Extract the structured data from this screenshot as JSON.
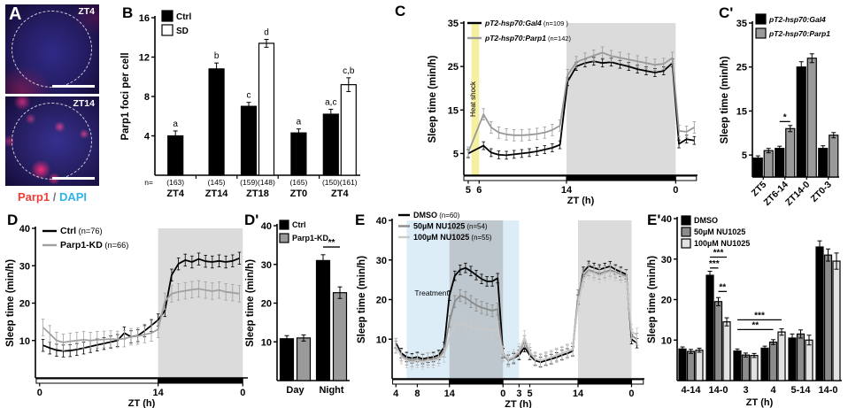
{
  "panels": {
    "A": {
      "label": "A"
    },
    "B": {
      "label": "B"
    },
    "C": {
      "label": "C"
    },
    "Cp": {
      "label": "C'"
    },
    "D": {
      "label": "D"
    },
    "Dp": {
      "label": "D'"
    },
    "E": {
      "label": "E"
    },
    "Ep": {
      "label": "E'"
    }
  },
  "panel_a": {
    "images": [
      {
        "tag": "ZT4"
      },
      {
        "tag": "ZT14"
      }
    ],
    "caption": [
      {
        "text": "Parp1",
        "color": "#ef3e36"
      },
      {
        "text": " / ",
        "color": "#777777"
      },
      {
        "text": "DAPI",
        "color": "#2fb4e9"
      }
    ]
  },
  "chart_data": [
    {
      "id": "B",
      "type": "bar",
      "ylabel": "Parp1 foci per cell",
      "ylim": [
        0,
        16
      ],
      "yticks": [
        4,
        8,
        12,
        16
      ],
      "categories": [
        "ZT4",
        "ZT14",
        "ZT18",
        "ZT0",
        "ZT4"
      ],
      "n_prefix": "n=",
      "n_labels": [
        "(163)",
        "(145)",
        "(159)(148)",
        "(165)",
        "(150)(161)"
      ],
      "series": [
        {
          "name": "Ctrl",
          "fill": "#000000",
          "values": [
            4.0,
            10.8,
            7.0,
            4.3,
            6.2
          ],
          "errors": [
            0.5,
            0.6,
            0.4,
            0.4,
            0.5
          ]
        },
        {
          "name": "SD",
          "fill": "#ffffff",
          "values": [
            null,
            null,
            13.4,
            null,
            9.2
          ],
          "errors": [
            null,
            null,
            0.4,
            null,
            0.7
          ]
        }
      ],
      "letters": [
        [
          "a",
          "b",
          "c",
          "a",
          "a,c"
        ],
        [
          null,
          null,
          "d",
          null,
          "c,b"
        ]
      ]
    },
    {
      "id": "C",
      "type": "line",
      "ylabel": "Sleep time (min/h)",
      "xlabel": "ZT (h)",
      "ylim": [
        0,
        35
      ],
      "yticks": [
        5,
        15,
        25,
        35
      ],
      "xlim": [
        4.6,
        26
      ],
      "xticks": [
        {
          "v": 5,
          "t": "5"
        },
        {
          "v": 6,
          "t": "6"
        },
        {
          "v": 14,
          "t": "14"
        },
        {
          "v": 24,
          "t": "0"
        }
      ],
      "bands": [
        {
          "x0": 5.3,
          "x1": 6.0,
          "color": "#f5efa0",
          "label": "Heat shock",
          "label_color": "#b3a653",
          "vertical": true
        },
        {
          "x0": 14,
          "x1": 24,
          "color": "#dbdbdb"
        }
      ],
      "daynight": [
        {
          "x0": 4.6,
          "x1": 14,
          "fill": "#ffffff"
        },
        {
          "x0": 14,
          "x1": 24,
          "fill": "#000000"
        },
        {
          "x0": 24,
          "x1": 25.9,
          "fill": "#ffffff"
        }
      ],
      "legend_italic": true,
      "series": [
        {
          "name": "pT2-hsp70:Gal4",
          "n": "(n=109 )",
          "color": "#000000",
          "err": 0.9,
          "x": [
            5,
            6.4,
            7.1,
            7.8,
            8.5,
            9.2,
            9.9,
            10.6,
            11.3,
            12,
            12.7,
            13.4,
            14.1,
            14.9,
            15.7,
            16.5,
            17.3,
            18.1,
            18.9,
            19.7,
            20.5,
            21.3,
            22.1,
            22.9,
            23.7,
            24.3,
            25,
            25.7
          ],
          "y": [
            5,
            6.8,
            5.2,
            4.7,
            4.6,
            4.8,
            5,
            5.2,
            5.5,
            5.9,
            6.3,
            7,
            21.5,
            25,
            25.8,
            26.2,
            25.8,
            26,
            25.5,
            25,
            24.4,
            24,
            23.6,
            24,
            25.8,
            7.2,
            8.3,
            8
          ]
        },
        {
          "name": "pT2-hsp70:Parp1",
          "n": "(n=142)",
          "color": "#999999",
          "err": 1.3,
          "x": [
            5,
            6.4,
            7.1,
            7.8,
            8.5,
            9.2,
            9.9,
            10.6,
            11.3,
            12,
            12.7,
            13.4,
            14.1,
            14.9,
            15.7,
            16.5,
            17.3,
            18.1,
            18.9,
            19.7,
            20.5,
            21.3,
            22.1,
            22.9,
            23.7,
            24.3,
            25,
            25.7
          ],
          "y": [
            5.2,
            14,
            11,
            9.8,
            9.4,
            9.2,
            9.2,
            9.3,
            9.5,
            9.8,
            10.4,
            11.4,
            23,
            26,
            26.8,
            27.5,
            28.2,
            27.4,
            27,
            26.6,
            26.2,
            25.8,
            25.4,
            25.6,
            27,
            10.2,
            10,
            11
          ]
        }
      ]
    },
    {
      "id": "Cp",
      "type": "bar",
      "ylabel": "Sleep time (min/h)",
      "ylim": [
        0,
        35
      ],
      "yticks": [
        5,
        15,
        25,
        35
      ],
      "categories": [
        "ZT5",
        "ZT6-14",
        "ZT14-0",
        "ZT0-3"
      ],
      "legend_italic": true,
      "series": [
        {
          "name": "pT2-hsp70:Gal4",
          "fill": "#000000",
          "values": [
            4.3,
            6.5,
            25,
            6.5
          ],
          "errors": [
            0.5,
            0.5,
            1.2,
            0.6
          ]
        },
        {
          "name": "pT2-hsp70:Parp1",
          "fill": "#9a9a9a",
          "values": [
            6,
            11,
            27,
            9.5
          ],
          "errors": [
            0.5,
            0.7,
            1,
            0.6
          ]
        }
      ],
      "sig": [
        {
          "text": "*",
          "g0": 1,
          "s0": 0,
          "g1": 1,
          "s1": 1,
          "y": 12.6
        }
      ]
    },
    {
      "id": "D",
      "type": "line",
      "ylabel": "Sleep time (min/h)",
      "xlabel": "ZT (h)",
      "ylim": [
        0,
        40
      ],
      "yticks": [
        10,
        20,
        30,
        40
      ],
      "xlim": [
        -0.5,
        24.6
      ],
      "xticks": [
        {
          "v": 0,
          "t": "0"
        },
        {
          "v": 14,
          "t": "14"
        },
        {
          "v": 24,
          "t": "0"
        }
      ],
      "bands": [
        {
          "x0": 14,
          "x1": 24,
          "color": "#dbdbdb"
        }
      ],
      "daynight": [
        {
          "x0": -0.4,
          "x1": 14,
          "fill": "#ffffff"
        },
        {
          "x0": 14,
          "x1": 24,
          "fill": "#000000"
        }
      ],
      "series": [
        {
          "name": "Ctrl",
          "n": "(n=76)",
          "color": "#000000",
          "err": 1.6,
          "x": [
            0.4,
            1.2,
            2,
            2.8,
            3.6,
            4.4,
            5.2,
            6,
            6.8,
            7.6,
            8.4,
            9.2,
            10,
            10.8,
            11.6,
            12.4,
            13.2,
            14,
            14.8,
            15.6,
            16.4,
            17.2,
            18,
            18.8,
            19.6,
            20.4,
            21.2,
            22,
            22.8,
            23.6
          ],
          "y": [
            8.7,
            8,
            7.4,
            7.2,
            7.3,
            7.6,
            8,
            8.4,
            8.8,
            9.2,
            9.6,
            10,
            12,
            11,
            11.3,
            12.6,
            14,
            15.5,
            18,
            27.5,
            30.5,
            31.5,
            31,
            31.8,
            31.2,
            31,
            31.3,
            31,
            31.3,
            32
          ]
        },
        {
          "name": "Parp1-KD",
          "n": "(n=66)",
          "color": "#a0a0a0",
          "err": 2.2,
          "x": [
            0.4,
            1.2,
            2,
            2.8,
            3.6,
            4.4,
            5.2,
            6,
            6.8,
            7.6,
            8.4,
            9.2,
            10,
            10.8,
            11.6,
            12.4,
            13.2,
            14,
            14.8,
            15.6,
            16.4,
            17.2,
            18,
            18.8,
            19.6,
            20.4,
            21.2,
            22,
            22.8,
            23.6
          ],
          "y": [
            13.5,
            11.8,
            10,
            9.5,
            9.8,
            10,
            10.2,
            10,
            10.2,
            10.3,
            10.4,
            10.3,
            10.5,
            11,
            11.2,
            11.6,
            12,
            13,
            20.5,
            22.5,
            23,
            23.3,
            23.6,
            23.8,
            23.5,
            23.2,
            23.5,
            23,
            22.8,
            22.5
          ]
        }
      ]
    },
    {
      "id": "Dp",
      "type": "bar",
      "ylabel": "Sleep time (min/h)",
      "ylim": [
        0,
        40
      ],
      "yticks": [
        10,
        20,
        30,
        40
      ],
      "categories": [
        "Day",
        "Night"
      ],
      "series": [
        {
          "name": "Ctrl",
          "fill": "#000000",
          "values": [
            10.8,
            31
          ],
          "errors": [
            0.8,
            1.5
          ]
        },
        {
          "name": "Parp1-KD",
          "fill": "#9a9a9a",
          "values": [
            11,
            22.7
          ],
          "errors": [
            0.8,
            1.5
          ]
        }
      ],
      "sig": [
        {
          "text": "**",
          "g0": 1,
          "s0": 0,
          "g1": 1,
          "s1": 1,
          "y": 34.5
        }
      ]
    },
    {
      "id": "E",
      "type": "line",
      "ylabel": "Sleep time (min/h)",
      "xlabel": "ZT (h)",
      "ylim": [
        0,
        40
      ],
      "yticks": [
        10,
        20,
        30,
        40
      ],
      "xlim": [
        3.3,
        50.4
      ],
      "xticks": [
        {
          "v": 4,
          "t": "4"
        },
        {
          "v": 8,
          "t": "8"
        },
        {
          "v": 14,
          "t": "14"
        },
        {
          "v": 24,
          "t": "0"
        },
        {
          "v": 27,
          "t": "3"
        },
        {
          "v": 29,
          "t": "5"
        },
        {
          "v": 38,
          "t": "14"
        },
        {
          "v": 48,
          "t": "0"
        }
      ],
      "bands": [
        {
          "x0": 6,
          "x1": 27,
          "color": "#dcedf8",
          "label": "Treatment",
          "label_color": "#90a9bd",
          "lx": 7.5,
          "ly": 21
        },
        {
          "x0": 14,
          "x1": 24,
          "color": "#9a9a9a",
          "opacity": 0.45
        },
        {
          "x0": 38,
          "x1": 48,
          "color": "#dbdbdb"
        }
      ],
      "daynight": [
        {
          "x0": 3.4,
          "x1": 14,
          "fill": "#ffffff"
        },
        {
          "x0": 14,
          "x1": 24,
          "fill": "#000000"
        },
        {
          "x0": 24,
          "x1": 38,
          "fill": "#ffffff"
        },
        {
          "x0": 38,
          "x1": 48,
          "fill": "#000000"
        },
        {
          "x0": 48,
          "x1": 50.2,
          "fill": "#ffffff"
        }
      ],
      "series": [
        {
          "name": "DMSO",
          "n": "(n=60)",
          "color": "#000000",
          "err": 1.2,
          "x": [
            4,
            5,
            6,
            7,
            8,
            9,
            10,
            11,
            12,
            13,
            14,
            15,
            16,
            17,
            18,
            19,
            20,
            21,
            22,
            23,
            24,
            25,
            26,
            27,
            28,
            29,
            30,
            31,
            32,
            33,
            34,
            35,
            36,
            37,
            38,
            39,
            40,
            41,
            42,
            43,
            44,
            45,
            46,
            47,
            48,
            49
          ],
          "y": [
            9,
            6.5,
            5.5,
            5.2,
            5.5,
            5,
            5.3,
            5.5,
            6,
            8,
            21,
            26,
            27.5,
            28,
            27.2,
            26.2,
            25.2,
            24.6,
            24.6,
            25.4,
            6.5,
            4.8,
            5.2,
            6,
            8,
            6,
            4.6,
            4.2,
            4.6,
            5,
            5.4,
            6,
            6.4,
            7,
            20,
            27,
            28.5,
            28,
            27.6,
            28,
            28.4,
            27.6,
            27,
            26.4,
            10,
            9
          ]
        },
        {
          "name": "50µM NU1025",
          "n": "(n=54)",
          "color": "#8a8a8a",
          "err": 1.5,
          "x": [
            4,
            5,
            6,
            7,
            8,
            9,
            10,
            11,
            12,
            13,
            14,
            15,
            16,
            17,
            18,
            19,
            20,
            21,
            22,
            23,
            24,
            25,
            26,
            27,
            28,
            29,
            30,
            31,
            32,
            33,
            34,
            35,
            36,
            37,
            38,
            39,
            40,
            41,
            42,
            43,
            44,
            45,
            46,
            47,
            48,
            49
          ],
          "y": [
            8,
            6,
            5,
            4.6,
            5,
            4.6,
            5,
            5,
            5.4,
            7,
            14.5,
            19.5,
            21,
            20.5,
            19.5,
            18.6,
            18,
            17.6,
            17.2,
            17.6,
            6,
            4.6,
            5.2,
            6.6,
            9.4,
            6.4,
            5,
            4.6,
            5,
            5.4,
            6,
            6.4,
            7,
            7.4,
            21,
            26,
            27.5,
            27,
            26.6,
            27,
            27.4,
            27,
            26.4,
            26,
            11,
            10
          ]
        },
        {
          "name": "100µM NU1025",
          "n": "(n=55)",
          "color": "#c9c9c9",
          "err": 1.8,
          "x": [
            4,
            5,
            6,
            7,
            8,
            9,
            10,
            11,
            12,
            13,
            14,
            15,
            16,
            17,
            18,
            19,
            20,
            21,
            22,
            23,
            24,
            25,
            26,
            27,
            28,
            29,
            30,
            31,
            32,
            33,
            34,
            35,
            36,
            37,
            38,
            39,
            40,
            41,
            42,
            43,
            44,
            45,
            46,
            47,
            48,
            49
          ],
          "y": [
            8.4,
            5.6,
            4.6,
            4.2,
            4.6,
            4.2,
            4.6,
            4.6,
            5,
            6,
            10.5,
            13.5,
            14,
            13.6,
            13,
            12.6,
            12.6,
            12.2,
            12.2,
            12.6,
            6.4,
            5,
            5.6,
            7,
            10.4,
            7,
            5,
            4.6,
            5,
            5.4,
            6,
            6.4,
            7,
            7.4,
            19,
            25,
            27,
            26.6,
            26,
            26.6,
            27,
            26.6,
            26,
            25.4,
            12,
            11
          ]
        }
      ]
    },
    {
      "id": "Ep",
      "type": "bar",
      "ylabel": "Sleep time (min/h)",
      "xlabel": "ZT (h)",
      "ylim": [
        0,
        40
      ],
      "yticks": [
        10,
        20,
        30,
        40
      ],
      "categories": [
        "4-14",
        "14-0",
        "3",
        "4",
        "5-14",
        "14-0"
      ],
      "series": [
        {
          "name": "DMSO",
          "fill": "#000000",
          "values": [
            7.8,
            26,
            7.3,
            8,
            10.5,
            33
          ],
          "errors": [
            0.5,
            1,
            0.5,
            0.5,
            1,
            1.5
          ]
        },
        {
          "name": "50µM NU1025",
          "fill": "#8c8c8c",
          "values": [
            7.2,
            19.5,
            6.3,
            9.5,
            11.5,
            31
          ],
          "errors": [
            0.5,
            1,
            0.5,
            0.6,
            1,
            1.5
          ]
        },
        {
          "name": "100µM NU1025",
          "fill": "#e2e2e2",
          "values": [
            7.5,
            14.5,
            6.2,
            12,
            10,
            29.5
          ],
          "errors": [
            0.5,
            1,
            0.5,
            0.8,
            1.2,
            2
          ]
        }
      ],
      "sig": [
        {
          "text": "***",
          "g0": 1,
          "s0": 0,
          "g1": 1,
          "s1": 2,
          "y": 30.5
        },
        {
          "text": "***",
          "g0": 1,
          "s0": 0,
          "g1": 1,
          "s1": 1,
          "y": 27.8
        },
        {
          "text": "**",
          "g0": 1,
          "s0": 1,
          "g1": 1,
          "s1": 2,
          "y": 22
        },
        {
          "text": "**",
          "g0": 2,
          "s0": 0,
          "g1": 3,
          "s1": 1,
          "y": 12.6
        },
        {
          "text": "***",
          "g0": 2,
          "s0": 0,
          "g1": 3,
          "s1": 2,
          "y": 15
        }
      ]
    }
  ]
}
